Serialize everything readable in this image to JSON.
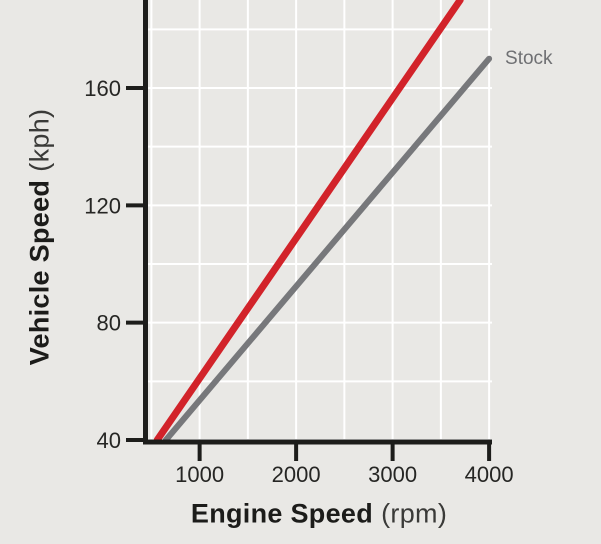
{
  "figure": {
    "background": "#e9e8e5",
    "grid_color": "#ffffff",
    "axis_color": "#1d1d1b",
    "tick_label_color": "#262624"
  },
  "chart_data": {
    "type": "line",
    "xlabel": "Engine Speed",
    "xlabel_unit": "(rpm)",
    "ylabel": "Vehicle Speed",
    "ylabel_unit": "(kph)",
    "xlim": [
      465,
      4030
    ],
    "ylim": [
      40,
      190
    ],
    "xticks": [
      1000,
      2000,
      3000,
      4000
    ],
    "yticks": [
      40,
      80,
      120,
      160
    ],
    "grid": true,
    "grid_x_step": 500,
    "grid_y_step": 20,
    "legend_position": "none",
    "series": [
      {
        "key": "red",
        "name": "Red line (label not visible, exits top of chart)",
        "color": "#d2232a",
        "width": 7,
        "points": [
          [
            560,
            40
          ],
          [
            3700,
            190
          ]
        ]
      },
      {
        "key": "stock",
        "name": "Stock",
        "color": "#77787b",
        "width": 6,
        "points": [
          [
            650,
            40
          ],
          [
            4000,
            170
          ]
        ]
      }
    ],
    "annotations": [
      {
        "key": "stock-label",
        "text": "Stock",
        "x": 4165,
        "y": 170.5,
        "color": "#6f7073",
        "font_size": 19
      }
    ]
  }
}
